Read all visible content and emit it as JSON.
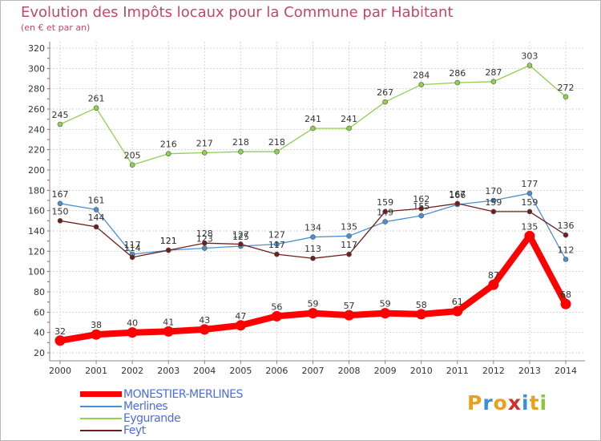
{
  "header": {
    "title": "Evolution des Impôts locaux pour la Commune par Habitant",
    "subtitle": "(en € et par an)"
  },
  "logo": {
    "text": "Proxiti",
    "colors": [
      "#e8a020",
      "#3a8fd8",
      "#e8a020",
      "#d03030",
      "#3a8fd8",
      "#e8a020",
      "#8cc63f"
    ]
  },
  "chart_data": {
    "type": "line",
    "x": [
      2000,
      2001,
      2002,
      2003,
      2004,
      2005,
      2006,
      2007,
      2008,
      2009,
      2010,
      2011,
      2012,
      2013,
      2014
    ],
    "ylim": [
      20,
      320
    ],
    "yticks": [
      20,
      40,
      60,
      80,
      100,
      120,
      140,
      160,
      180,
      200,
      220,
      240,
      260,
      280,
      300,
      320
    ],
    "grid": true,
    "legend_position": "bottom-left",
    "series": [
      {
        "name": "Eygurande",
        "color": "#8fd14f",
        "values": [
          245,
          261,
          205,
          216,
          217,
          218,
          218,
          241,
          241,
          267,
          284,
          286,
          287,
          303,
          272
        ]
      },
      {
        "name": "Merlines",
        "color": "#4a90d0",
        "values": [
          167,
          161,
          117,
          121,
          123,
          125,
          127,
          134,
          135,
          149,
          155,
          166,
          170,
          177,
          112
        ]
      },
      {
        "name": "Feyt",
        "color": "#6e1e1e",
        "values": [
          150,
          144,
          114,
          121,
          128,
          127,
          117,
          113,
          117,
          159,
          162,
          167,
          159,
          159,
          136
        ]
      },
      {
        "name": "MONESTIER-MERLINES",
        "color": "#ff0000",
        "values": [
          32,
          38,
          40,
          41,
          43,
          47,
          56,
          59,
          57,
          59,
          58,
          61,
          87,
          135,
          68
        ]
      }
    ],
    "legend_order": [
      "MONESTIER-MERLINES",
      "Merlines",
      "Eygurande",
      "Feyt"
    ]
  }
}
